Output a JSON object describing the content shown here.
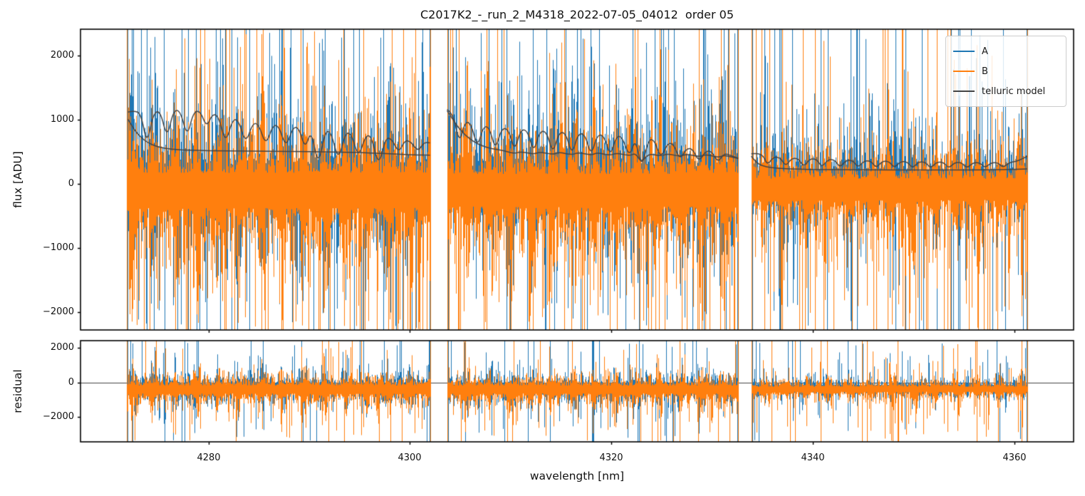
{
  "legend": {
    "items": [
      {
        "label": "A",
        "color": "#1f77b4"
      },
      {
        "label": "B",
        "color": "#ff7f0e"
      },
      {
        "label": "telluric model",
        "color": "#444444"
      }
    ]
  },
  "chart_data": {
    "type": "line",
    "title": "C2017K2_-_run_2_M4318_2022-07-05_04012  order 05",
    "xlabel": "wavelength [nm]",
    "xlim": [
      4267.3,
      4365.9
    ],
    "xticks": [
      4280,
      4300,
      4320,
      4340,
      4360
    ],
    "grid": false,
    "legend_position": "upper right",
    "panels": [
      {
        "name": "flux",
        "ylabel": "flux [ADU]",
        "ylim": [
          -2278,
          2411
        ],
        "yticks": [
          -2000,
          -1000,
          0,
          1000,
          2000
        ]
      },
      {
        "name": "residual",
        "ylabel": "residual",
        "ylim": [
          -3461,
          2425
        ],
        "yticks": [
          -2000,
          0,
          2000
        ],
        "zero_line": true
      }
    ],
    "segments_nm": [
      [
        4271.9,
        4302.0
      ],
      [
        4303.7,
        4332.6
      ],
      [
        4333.9,
        4361.3
      ]
    ],
    "series": [
      {
        "name": "A",
        "color": "#1f77b4",
        "kind": "noisy-spectrum"
      },
      {
        "name": "B",
        "color": "#ff7f0e",
        "kind": "noisy-spectrum"
      },
      {
        "name": "telluric model",
        "color": "#444444",
        "kind": "model"
      }
    ],
    "noise": {
      "seed": 7,
      "flux_panel": {
        "sigma_per_segment": [
          1050,
          980,
          640
        ],
        "center_a": 60,
        "center_b": -60,
        "spike_up_a": 0.2,
        "spike_dn_a": 0.14,
        "spike_up_b": 0.14,
        "spike_dn_b": 0.22,
        "spike_extra": 1300
      },
      "residual_panel": {
        "sigma_per_segment": [
          900,
          860,
          560
        ],
        "center_a": -300,
        "center_b": -380,
        "spike_up_a": 0.12,
        "spike_dn_a": 0.1,
        "spike_up_b": 0.09,
        "spike_dn_b": 0.15,
        "spike_extra": 1400
      }
    },
    "telluric_model": {
      "upper": [
        [
          4272.0,
          1120
        ],
        [
          4272.6,
          1140
        ],
        [
          4273.3,
          1100
        ],
        [
          4273.9,
          600
        ],
        [
          4274.5,
          1090
        ],
        [
          4275.2,
          1150
        ],
        [
          4275.9,
          700
        ],
        [
          4276.5,
          1140
        ],
        [
          4277.2,
          1150
        ],
        [
          4277.9,
          720
        ],
        [
          4278.5,
          1120
        ],
        [
          4279.2,
          1140
        ],
        [
          4279.8,
          880
        ],
        [
          4280.4,
          1090
        ],
        [
          4281.0,
          1060
        ],
        [
          4281.7,
          620
        ],
        [
          4282.4,
          1010
        ],
        [
          4283.0,
          990
        ],
        [
          4283.7,
          620
        ],
        [
          4284.4,
          950
        ],
        [
          4285.0,
          930
        ],
        [
          4285.7,
          590
        ],
        [
          4286.4,
          920
        ],
        [
          4287.0,
          900
        ],
        [
          4287.7,
          560
        ],
        [
          4288.4,
          890
        ],
        [
          4289.0,
          870
        ],
        [
          4289.6,
          540
        ],
        [
          4290.2,
          850
        ],
        [
          4290.9,
          260
        ],
        [
          4291.6,
          830
        ],
        [
          4292.2,
          800
        ],
        [
          4292.9,
          350
        ],
        [
          4293.6,
          800
        ],
        [
          4294.2,
          780
        ],
        [
          4294.9,
          400
        ],
        [
          4295.6,
          760
        ],
        [
          4296.2,
          740
        ],
        [
          4296.9,
          260
        ],
        [
          4297.6,
          720
        ],
        [
          4298.2,
          700
        ],
        [
          4298.9,
          480
        ],
        [
          4299.5,
          680
        ],
        [
          4300.1,
          660
        ],
        [
          4300.8,
          500
        ],
        [
          4301.4,
          650
        ],
        [
          4302.0,
          640
        ],
        [
          4303.7,
          1160
        ],
        [
          4304.3,
          1100
        ],
        [
          4304.9,
          620
        ],
        [
          4305.5,
          980
        ],
        [
          4306.1,
          930
        ],
        [
          4306.7,
          560
        ],
        [
          4307.3,
          900
        ],
        [
          4307.9,
          880
        ],
        [
          4308.5,
          520
        ],
        [
          4309.1,
          870
        ],
        [
          4309.8,
          850
        ],
        [
          4310.4,
          500
        ],
        [
          4311.0,
          850
        ],
        [
          4311.7,
          830
        ],
        [
          4312.3,
          480
        ],
        [
          4312.9,
          830
        ],
        [
          4313.6,
          810
        ],
        [
          4314.2,
          460
        ],
        [
          4314.8,
          810
        ],
        [
          4315.5,
          790
        ],
        [
          4316.1,
          440
        ],
        [
          4316.7,
          790
        ],
        [
          4317.4,
          770
        ],
        [
          4318.0,
          430
        ],
        [
          4318.6,
          770
        ],
        [
          4319.3,
          750
        ],
        [
          4319.9,
          420
        ],
        [
          4320.5,
          750
        ],
        [
          4321.1,
          730
        ],
        [
          4321.8,
          410
        ],
        [
          4322.4,
          720
        ],
        [
          4323.0,
          230
        ],
        [
          4323.7,
          700
        ],
        [
          4324.3,
          680
        ],
        [
          4324.9,
          390
        ],
        [
          4325.6,
          640
        ],
        [
          4326.2,
          620
        ],
        [
          4326.8,
          370
        ],
        [
          4327.5,
          560
        ],
        [
          4328.1,
          540
        ],
        [
          4328.7,
          340
        ],
        [
          4329.4,
          520
        ],
        [
          4330.0,
          500
        ],
        [
          4330.6,
          330
        ],
        [
          4331.2,
          480
        ],
        [
          4331.9,
          440
        ],
        [
          4332.6,
          400
        ],
        [
          4333.9,
          470
        ],
        [
          4334.5,
          480
        ],
        [
          4335.1,
          440
        ],
        [
          4335.5,
          290
        ],
        [
          4336.1,
          420
        ],
        [
          4336.8,
          410
        ],
        [
          4337.3,
          270
        ],
        [
          4337.9,
          400
        ],
        [
          4338.6,
          395
        ],
        [
          4339.1,
          260
        ],
        [
          4339.7,
          390
        ],
        [
          4340.4,
          385
        ],
        [
          4340.9,
          255
        ],
        [
          4341.5,
          380
        ],
        [
          4342.2,
          375
        ],
        [
          4342.7,
          250
        ],
        [
          4343.3,
          370
        ],
        [
          4344.0,
          365
        ],
        [
          4344.5,
          250
        ],
        [
          4345.1,
          360
        ],
        [
          4345.8,
          355
        ],
        [
          4346.3,
          245
        ],
        [
          4346.9,
          355
        ],
        [
          4347.6,
          350
        ],
        [
          4348.1,
          245
        ],
        [
          4348.7,
          350
        ],
        [
          4349.4,
          345
        ],
        [
          4349.9,
          240
        ],
        [
          4350.5,
          345
        ],
        [
          4351.2,
          340
        ],
        [
          4351.7,
          240
        ],
        [
          4352.3,
          340
        ],
        [
          4353.0,
          335
        ],
        [
          4353.5,
          240
        ],
        [
          4354.1,
          335
        ],
        [
          4354.8,
          330
        ],
        [
          4355.3,
          240
        ],
        [
          4355.9,
          330
        ],
        [
          4356.6,
          330
        ],
        [
          4357.1,
          245
        ],
        [
          4357.7,
          330
        ],
        [
          4358.4,
          330
        ],
        [
          4358.9,
          250
        ],
        [
          4359.5,
          335
        ],
        [
          4360.2,
          350
        ],
        [
          4360.8,
          390
        ],
        [
          4361.3,
          430
        ]
      ],
      "lower": [
        [
          4272.0,
          1010
        ],
        [
          4272.6,
          850
        ],
        [
          4273.3,
          720
        ],
        [
          4274.1,
          630
        ],
        [
          4275.0,
          575
        ],
        [
          4276.0,
          545
        ],
        [
          4277.5,
          528
        ],
        [
          4279.0,
          520
        ],
        [
          4281.0,
          515
        ],
        [
          4283.0,
          512
        ],
        [
          4285.0,
          510
        ],
        [
          4287.0,
          508
        ],
        [
          4289.0,
          505
        ],
        [
          4291.0,
          500
        ],
        [
          4293.0,
          495
        ],
        [
          4295.0,
          488
        ],
        [
          4296.5,
          480
        ],
        [
          4298.0,
          468
        ],
        [
          4299.5,
          458
        ],
        [
          4300.8,
          450
        ],
        [
          4302.0,
          447
        ],
        [
          4303.7,
          1140
        ],
        [
          4304.2,
          1020
        ],
        [
          4304.8,
          880
        ],
        [
          4305.5,
          760
        ],
        [
          4306.3,
          660
        ],
        [
          4307.2,
          590
        ],
        [
          4308.2,
          545
        ],
        [
          4309.3,
          520
        ],
        [
          4310.4,
          470
        ],
        [
          4311.0,
          505
        ],
        [
          4312.3,
          460
        ],
        [
          4312.9,
          500
        ],
        [
          4314.2,
          455
        ],
        [
          4314.8,
          496
        ],
        [
          4316.1,
          450
        ],
        [
          4316.7,
          492
        ],
        [
          4318.0,
          445
        ],
        [
          4318.6,
          488
        ],
        [
          4319.9,
          440
        ],
        [
          4320.5,
          484
        ],
        [
          4321.8,
          435
        ],
        [
          4322.4,
          480
        ],
        [
          4323.0,
          330
        ],
        [
          4323.7,
          476
        ],
        [
          4324.9,
          430
        ],
        [
          4325.6,
          472
        ],
        [
          4326.8,
          425
        ],
        [
          4327.5,
          468
        ],
        [
          4328.7,
          420
        ],
        [
          4329.4,
          460
        ],
        [
          4330.6,
          410
        ],
        [
          4331.2,
          445
        ],
        [
          4331.9,
          420
        ],
        [
          4332.6,
          395
        ],
        [
          4333.9,
          430
        ],
        [
          4334.4,
          330
        ],
        [
          4335.0,
          280
        ],
        [
          4335.8,
          255
        ],
        [
          4336.8,
          240
        ],
        [
          4338.0,
          232
        ],
        [
          4340.0,
          225
        ],
        [
          4343.0,
          220
        ],
        [
          4346.0,
          218
        ],
        [
          4350.0,
          216
        ],
        [
          4354.0,
          216
        ],
        [
          4357.0,
          218
        ],
        [
          4359.0,
          222
        ],
        [
          4360.5,
          228
        ],
        [
          4361.3,
          232
        ]
      ]
    }
  }
}
